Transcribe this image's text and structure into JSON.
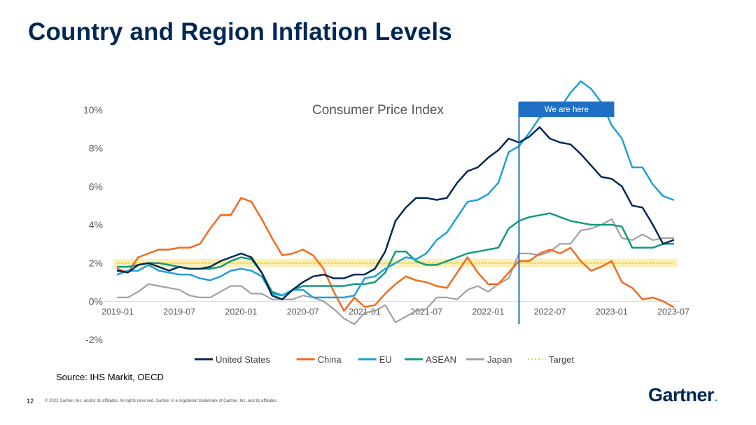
{
  "slide": {
    "title": "Country and Region Inflation Levels",
    "source": "Source: IHS Markit, OECD",
    "page_number": "12",
    "copyright": "© 2022 Gartner, Inc. and/or its affiliates. All rights reserved. Gartner is a registered trademark of Gartner, Inc. and its affiliates.",
    "logo_text": "Gartner",
    "logo_mark": "."
  },
  "chart_data": {
    "type": "line",
    "title": "Consumer Price Index",
    "marker_label": "We are here",
    "marker_date": "2022-04",
    "x": [
      "2019-01",
      "2019-02",
      "2019-03",
      "2019-04",
      "2019-05",
      "2019-06",
      "2019-07",
      "2019-08",
      "2019-09",
      "2019-10",
      "2019-11",
      "2019-12",
      "2020-01",
      "2020-02",
      "2020-03",
      "2020-04",
      "2020-05",
      "2020-06",
      "2020-07",
      "2020-08",
      "2020-09",
      "2020-10",
      "2020-11",
      "2020-12",
      "2021-01",
      "2021-02",
      "2021-03",
      "2021-04",
      "2021-05",
      "2021-06",
      "2021-07",
      "2021-08",
      "2021-09",
      "2021-10",
      "2021-11",
      "2021-12",
      "2022-01",
      "2022-02",
      "2022-03",
      "2022-04",
      "2022-05",
      "2022-06",
      "2022-07",
      "2022-08",
      "2022-09",
      "2022-10",
      "2022-11",
      "2022-12",
      "2023-01",
      "2023-02",
      "2023-03",
      "2023-04",
      "2023-05",
      "2023-06",
      "2023-07"
    ],
    "x_ticks": [
      "2019-01",
      "2019-07",
      "2020-01",
      "2020-07",
      "2021-01",
      "2021-07",
      "2022-01",
      "2022-07",
      "2023-01",
      "2023-07"
    ],
    "ylim": [
      -2,
      10
    ],
    "y_ticks": [
      -2,
      0,
      2,
      4,
      6,
      8,
      10
    ],
    "y_tick_labels": [
      "-2%",
      "0%",
      "2%",
      "4%",
      "6%",
      "8%",
      "10%"
    ],
    "legend_position": "bottom",
    "colors": {
      "United States": "#002856",
      "China": "#f26b1d",
      "EU": "#1e9fd8",
      "ASEAN": "#129b7d",
      "Japan": "#a0a0a0",
      "Target": "#f0d23c",
      "marker": "#1f6fc4"
    },
    "series": [
      {
        "name": "United States",
        "values": [
          1.6,
          1.5,
          1.9,
          2.0,
          1.8,
          1.6,
          1.8,
          1.7,
          1.7,
          1.8,
          2.1,
          2.3,
          2.5,
          2.3,
          1.5,
          0.3,
          0.1,
          0.6,
          1.0,
          1.3,
          1.4,
          1.2,
          1.2,
          1.4,
          1.4,
          1.7,
          2.6,
          4.2,
          4.9,
          5.4,
          5.4,
          5.3,
          5.4,
          6.2,
          6.8,
          7.0,
          7.5,
          7.9,
          8.5,
          8.3,
          8.6,
          9.1,
          8.5,
          8.3,
          8.2,
          7.7,
          7.1,
          6.5,
          6.4,
          6.0,
          5.0,
          4.9,
          4.0,
          3.0,
          3.2
        ]
      },
      {
        "name": "China",
        "values": [
          1.7,
          1.5,
          2.3,
          2.5,
          2.7,
          2.7,
          2.8,
          2.8,
          3.0,
          3.8,
          4.5,
          4.5,
          5.4,
          5.2,
          4.3,
          3.3,
          2.4,
          2.5,
          2.7,
          2.4,
          1.7,
          0.5,
          -0.5,
          0.2,
          -0.3,
          -0.2,
          0.4,
          0.9,
          1.3,
          1.1,
          1.0,
          0.8,
          0.7,
          1.5,
          2.3,
          1.5,
          0.9,
          0.9,
          1.5,
          2.1,
          2.1,
          2.5,
          2.7,
          2.5,
          2.8,
          2.1,
          1.6,
          1.8,
          2.1,
          1.0,
          0.7,
          0.1,
          0.2,
          0.0,
          -0.3
        ]
      },
      {
        "name": "EU",
        "values": [
          1.4,
          1.6,
          1.6,
          1.9,
          1.6,
          1.5,
          1.4,
          1.4,
          1.2,
          1.1,
          1.3,
          1.6,
          1.7,
          1.6,
          1.3,
          0.4,
          0.3,
          0.6,
          0.6,
          0.2,
          0.2,
          0.2,
          0.2,
          0.3,
          1.2,
          1.3,
          1.7,
          2.0,
          2.3,
          2.2,
          2.5,
          3.2,
          3.6,
          4.4,
          5.2,
          5.3,
          5.6,
          6.2,
          7.8,
          8.1,
          8.8,
          9.6,
          9.8,
          10.1,
          10.9,
          11.5,
          11.1,
          10.4,
          9.2,
          8.5,
          7.0,
          7.0,
          6.1,
          5.5,
          5.3
        ]
      },
      {
        "name": "ASEAN",
        "values": [
          1.8,
          1.8,
          1.9,
          2.0,
          2.0,
          1.9,
          1.8,
          1.7,
          1.7,
          1.7,
          1.8,
          2.1,
          2.3,
          2.2,
          1.5,
          0.5,
          0.3,
          0.6,
          0.8,
          0.8,
          0.8,
          0.8,
          0.8,
          0.9,
          0.9,
          1.0,
          1.5,
          2.6,
          2.6,
          2.1,
          1.9,
          1.9,
          2.1,
          2.3,
          2.5,
          2.6,
          2.7,
          2.8,
          3.8,
          4.2,
          4.4,
          4.5,
          4.6,
          4.4,
          4.2,
          4.1,
          4.0,
          4.0,
          4.0,
          3.9,
          2.8,
          2.8,
          2.8,
          3.0,
          3.0
        ]
      },
      {
        "name": "Japan",
        "values": [
          0.2,
          0.2,
          0.5,
          0.9,
          0.8,
          0.7,
          0.6,
          0.3,
          0.2,
          0.2,
          0.5,
          0.8,
          0.8,
          0.4,
          0.4,
          0.1,
          0.1,
          0.1,
          0.3,
          0.2,
          0.0,
          -0.4,
          -0.9,
          -1.2,
          -0.6,
          -0.5,
          -0.2,
          -1.1,
          -0.8,
          -0.5,
          -0.4,
          0.2,
          0.2,
          0.1,
          0.6,
          0.8,
          0.5,
          0.9,
          1.2,
          2.5,
          2.5,
          2.4,
          2.6,
          3.0,
          3.0,
          3.7,
          3.8,
          4.0,
          4.3,
          3.3,
          3.2,
          3.5,
          3.2,
          3.3,
          3.3
        ]
      },
      {
        "name": "Target",
        "values": [
          2,
          2,
          2,
          2,
          2,
          2,
          2,
          2,
          2,
          2,
          2,
          2,
          2,
          2,
          2,
          2,
          2,
          2,
          2,
          2,
          2,
          2,
          2,
          2,
          2,
          2,
          2,
          2,
          2,
          2,
          2,
          2,
          2,
          2,
          2,
          2,
          2,
          2,
          2,
          2,
          2,
          2,
          2,
          2,
          2,
          2,
          2,
          2,
          2,
          2,
          2,
          2,
          2,
          2,
          2
        ]
      }
    ]
  }
}
